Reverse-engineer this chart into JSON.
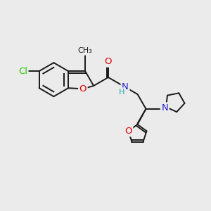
{
  "background_color": "#ebebeb",
  "bond_color": "#1a1a1a",
  "lw": 1.4,
  "atom_colors": {
    "Cl": "#22cc00",
    "O": "#dd0000",
    "N": "#2222cc",
    "H": "#22aaaa",
    "C": "#1a1a1a"
  },
  "fontsize": 9.5,
  "small_fontsize": 8.0
}
